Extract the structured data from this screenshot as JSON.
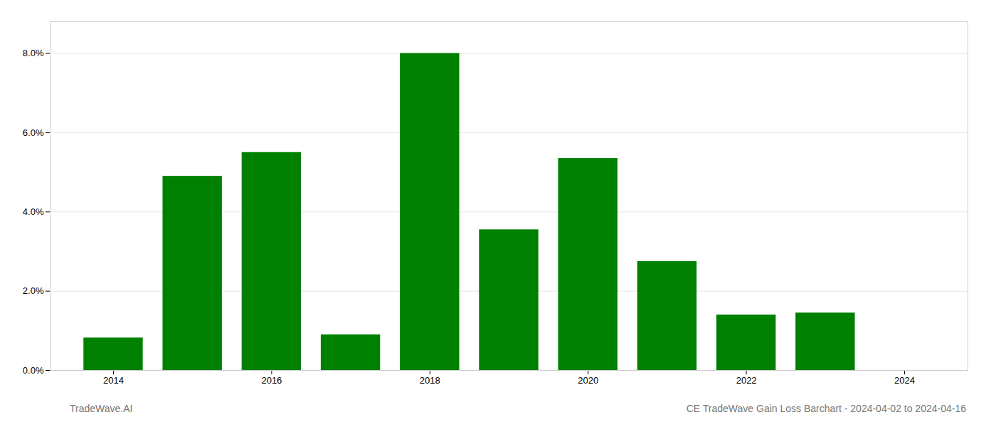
{
  "chart_data": {
    "type": "bar",
    "x": [
      2014,
      2015,
      2016,
      2017,
      2018,
      2019,
      2020,
      2021,
      2022,
      2023
    ],
    "values": [
      0.0082,
      0.049,
      0.055,
      0.009,
      0.08,
      0.0355,
      0.0535,
      0.0275,
      0.014,
      0.0145
    ],
    "color": "#008000",
    "xlim": [
      2013.2,
      2024.8
    ],
    "xticks": [
      2014,
      2016,
      2018,
      2020,
      2022,
      2024
    ],
    "ylim": [
      0,
      0.088
    ],
    "yticks": [
      {
        "value": 0.0,
        "label": "0.0%"
      },
      {
        "value": 0.02,
        "label": "2.0%"
      },
      {
        "value": 0.04,
        "label": "4.0%"
      },
      {
        "value": 0.06,
        "label": "6.0%"
      },
      {
        "value": 0.08,
        "label": "8.0%"
      }
    ],
    "grid": true,
    "annotations": [
      "TradeWave.AI",
      "CE TradeWave Gain Loss Barchart - 2024-04-02 to 2024-04-16"
    ]
  }
}
